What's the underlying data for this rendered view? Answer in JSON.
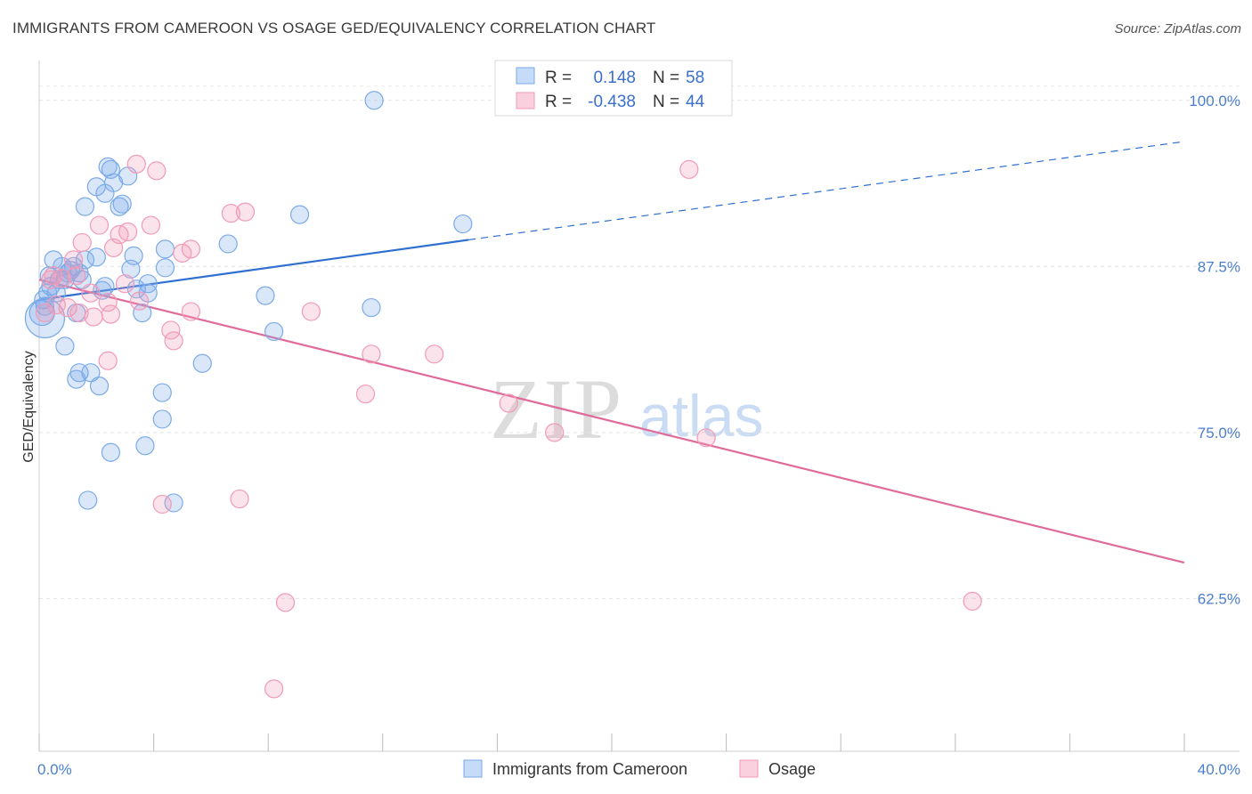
{
  "title": "IMMIGRANTS FROM CAMEROON VS OSAGE GED/EQUIVALENCY CORRELATION CHART",
  "source": "Source: ZipAtlas.com",
  "watermark": {
    "zip": "ZIP",
    "atlas": "atlas"
  },
  "chart_data": {
    "type": "scatter",
    "ylabel": "GED/Equivalency",
    "xlim": [
      0,
      40
    ],
    "ylim": [
      51,
      103
    ],
    "x_tick_labels": [
      "0.0%",
      "40.0%"
    ],
    "y_ticks": [
      62.5,
      75.0,
      87.5,
      100.0
    ],
    "y_tick_labels": [
      "62.5%",
      "75.0%",
      "87.5%",
      "100.0%"
    ],
    "legend": {
      "r_label": "R =",
      "n_label": "N =",
      "entries": [
        {
          "name": "Immigrants from Cameroon",
          "r": "0.148",
          "n": "58",
          "color": "#7aaae8"
        },
        {
          "name": "Osage",
          "r": "-0.438",
          "n": "44",
          "color": "#f29ab6"
        }
      ]
    },
    "series": [
      {
        "name": "Immigrants from Cameroon",
        "color": "#7aaae8",
        "trend": {
          "x0": 0,
          "y0": 85.0,
          "x1": 15.0,
          "y1": 89.5,
          "x_dash_end": 40,
          "y_dash_end": 96.9
        },
        "points": [
          [
            0.1,
            84.0
          ],
          [
            0.2,
            84.5
          ],
          [
            0.3,
            85.5
          ],
          [
            0.4,
            86.0
          ],
          [
            0.5,
            88.0
          ],
          [
            0.6,
            85.5
          ],
          [
            0.7,
            86.5
          ],
          [
            0.8,
            87.5
          ],
          [
            0.9,
            86.5
          ],
          [
            1.0,
            87.0
          ],
          [
            1.1,
            87.2
          ],
          [
            1.2,
            87.5
          ],
          [
            1.3,
            84.0
          ],
          [
            1.4,
            87.0
          ],
          [
            1.5,
            86.5
          ],
          [
            1.6,
            88.0
          ],
          [
            0.9,
            81.5
          ],
          [
            1.3,
            79.0
          ],
          [
            1.4,
            79.5
          ],
          [
            1.8,
            79.5
          ],
          [
            2.1,
            78.5
          ],
          [
            1.6,
            92.0
          ],
          [
            2.0,
            93.5
          ],
          [
            2.3,
            93.0
          ],
          [
            2.4,
            95.0
          ],
          [
            2.5,
            94.8
          ],
          [
            2.6,
            93.8
          ],
          [
            2.8,
            92.0
          ],
          [
            2.9,
            92.2
          ],
          [
            3.1,
            94.3
          ],
          [
            3.2,
            87.3
          ],
          [
            3.3,
            88.3
          ],
          [
            2.0,
            88.2
          ],
          [
            2.3,
            86.0
          ],
          [
            3.4,
            85.8
          ],
          [
            3.6,
            84.0
          ],
          [
            3.8,
            85.5
          ],
          [
            3.8,
            86.2
          ],
          [
            4.4,
            88.8
          ],
          [
            4.4,
            87.4
          ],
          [
            2.2,
            85.7
          ],
          [
            4.3,
            78.0
          ],
          [
            4.3,
            76.0
          ],
          [
            3.7,
            74.0
          ],
          [
            2.5,
            73.5
          ],
          [
            5.7,
            80.2
          ],
          [
            6.6,
            89.2
          ],
          [
            7.9,
            85.3
          ],
          [
            8.2,
            82.6
          ],
          [
            9.1,
            91.4
          ],
          [
            11.6,
            84.4
          ],
          [
            11.7,
            100.0
          ],
          [
            14.8,
            90.7
          ],
          [
            4.7,
            69.7
          ],
          [
            1.7,
            69.9
          ],
          [
            0.2,
            83.6
          ],
          [
            0.15,
            85.0
          ],
          [
            0.35,
            86.8
          ]
        ],
        "sizes": [
          14,
          10,
          10,
          10,
          10,
          10,
          10,
          10,
          10,
          10,
          10,
          10,
          10,
          10,
          10,
          10,
          10,
          10,
          10,
          10,
          10,
          10,
          10,
          10,
          10,
          10,
          10,
          10,
          10,
          10,
          10,
          10,
          10,
          10,
          10,
          10,
          10,
          10,
          10,
          10,
          10,
          10,
          10,
          10,
          10,
          10,
          10,
          10,
          10,
          10,
          10,
          10,
          10,
          10,
          10,
          22,
          10,
          10
        ]
      },
      {
        "name": "Osage",
        "color": "#f29ab6",
        "trend": {
          "x0": 0,
          "y0": 86.5,
          "x1": 40,
          "y1": 65.2
        },
        "points": [
          [
            0.2,
            84.0
          ],
          [
            0.4,
            86.5
          ],
          [
            0.6,
            84.6
          ],
          [
            0.8,
            86.6
          ],
          [
            1.0,
            84.4
          ],
          [
            1.2,
            88.0
          ],
          [
            1.3,
            86.8
          ],
          [
            1.4,
            84.0
          ],
          [
            1.5,
            89.3
          ],
          [
            1.8,
            85.5
          ],
          [
            1.9,
            83.7
          ],
          [
            2.1,
            90.6
          ],
          [
            2.4,
            84.8
          ],
          [
            2.5,
            83.9
          ],
          [
            2.6,
            88.9
          ],
          [
            2.8,
            89.9
          ],
          [
            3.0,
            86.2
          ],
          [
            3.1,
            90.1
          ],
          [
            3.4,
            95.2
          ],
          [
            3.5,
            84.9
          ],
          [
            3.9,
            90.6
          ],
          [
            4.1,
            94.7
          ],
          [
            4.6,
            82.7
          ],
          [
            4.7,
            81.9
          ],
          [
            5.0,
            88.5
          ],
          [
            5.3,
            88.8
          ],
          [
            5.3,
            84.1
          ],
          [
            2.4,
            80.4
          ],
          [
            6.7,
            91.5
          ],
          [
            7.2,
            91.6
          ],
          [
            7.0,
            70.0
          ],
          [
            4.3,
            69.6
          ],
          [
            8.6,
            62.2
          ],
          [
            8.2,
            55.7
          ],
          [
            9.5,
            84.1
          ],
          [
            11.6,
            80.9
          ],
          [
            11.4,
            77.9
          ],
          [
            13.8,
            80.9
          ],
          [
            16.4,
            77.2
          ],
          [
            18.0,
            75.0
          ],
          [
            22.7,
            94.8
          ],
          [
            23.3,
            74.6
          ],
          [
            32.6,
            62.3
          ],
          [
            0.5,
            86.8
          ]
        ],
        "sizes": [
          10,
          10,
          10,
          10,
          10,
          10,
          10,
          10,
          10,
          10,
          10,
          10,
          10,
          10,
          10,
          10,
          10,
          10,
          10,
          10,
          10,
          10,
          10,
          10,
          10,
          10,
          10,
          10,
          10,
          10,
          10,
          10,
          10,
          10,
          10,
          10,
          10,
          10,
          10,
          10,
          10,
          10,
          10,
          10
        ]
      }
    ]
  }
}
